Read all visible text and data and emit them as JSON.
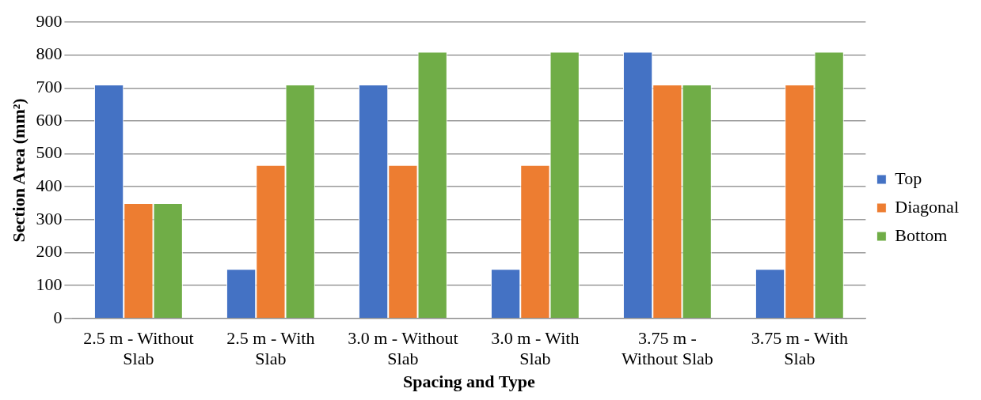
{
  "chart_data": {
    "type": "bar",
    "xlabel": "Spacing and Type",
    "ylabel": "Section Area (mm²)",
    "categories": [
      "2.5 m - Without Slab",
      "2.5 m - With Slab",
      "3.0 m - Without Slab",
      "3.0 m - With Slab",
      "3.75 m - Without Slab",
      "3.75 m - With Slab"
    ],
    "series": [
      {
        "name": "Top",
        "color": "#4472c4",
        "values": [
          710,
          150,
          710,
          150,
          810,
          150
        ]
      },
      {
        "name": "Diagonal",
        "color": "#ed7d31",
        "values": [
          350,
          466,
          466,
          466,
          710,
          710
        ]
      },
      {
        "name": "Bottom",
        "color": "#70ad47",
        "values": [
          350,
          710,
          810,
          810,
          710,
          810
        ]
      }
    ],
    "ylim": [
      0,
      900
    ],
    "yticks": [
      0,
      100,
      200,
      300,
      400,
      500,
      600,
      700,
      800,
      900
    ],
    "grid": "y",
    "legend": "right"
  }
}
